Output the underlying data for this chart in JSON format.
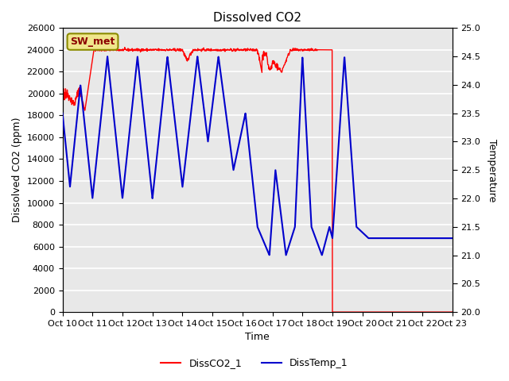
{
  "title": "Dissolved CO2",
  "xlabel": "Time",
  "ylabel_left": "Dissolved CO2 (ppm)",
  "ylabel_right": "Temperature",
  "annotation": "SW_met",
  "legend": [
    "DissCO2_1",
    "DissTemp_1"
  ],
  "left_ylim": [
    0,
    26000
  ],
  "right_ylim": [
    20.0,
    25.0
  ],
  "left_yticks": [
    0,
    2000,
    4000,
    6000,
    8000,
    10000,
    12000,
    14000,
    16000,
    18000,
    20000,
    22000,
    24000,
    26000
  ],
  "right_yticks": [
    20.0,
    20.5,
    21.0,
    21.5,
    22.0,
    22.5,
    23.0,
    23.5,
    24.0,
    24.5,
    25.0
  ],
  "xtick_labels": [
    "Oct 10",
    "Oct 11",
    "Oct 12",
    "Oct 13",
    "Oct 14",
    "Oct 15",
    "Oct 16",
    "Oct 17",
    "Oct 18",
    "Oct 19",
    "Oct 20",
    "Oct 21",
    "Oct 22",
    "Oct 23"
  ],
  "color_red": "#FF0000",
  "color_blue": "#0000CC",
  "bg_color": "#E8E8E8",
  "grid_color": "#FFFFFF",
  "annotation_bg": "#F0E68C",
  "annotation_border": "#8B8B00"
}
